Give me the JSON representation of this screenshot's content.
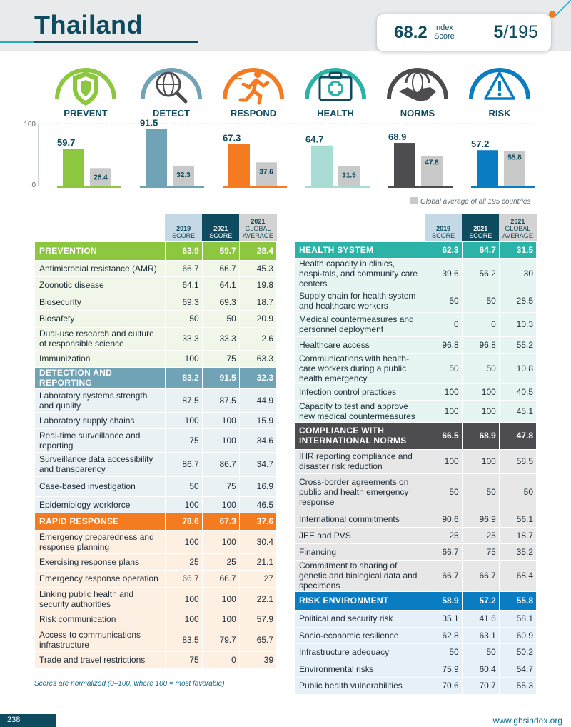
{
  "header": {
    "country": "Thailand",
    "index_score": "68.2",
    "index_label_line1": "Index",
    "index_label_line2": "Score",
    "rank": "5",
    "rank_total": "/195"
  },
  "categories": [
    {
      "label": "PREVENT",
      "icon": "shield-icon",
      "color": "#8dc63f"
    },
    {
      "label": "DETECT",
      "icon": "globe-magnifier-icon",
      "color": "#6fa3b5"
    },
    {
      "label": "RESPOND",
      "icon": "running-person-icon",
      "color": "#f47b20"
    },
    {
      "label": "HEALTH",
      "icon": "medical-kit-icon",
      "color": "#2ab3a6"
    },
    {
      "label": "NORMS",
      "icon": "handshake-globe-icon",
      "color": "#4d4d4f"
    },
    {
      "label": "RISK",
      "icon": "warning-icon",
      "color": "#0a7cc1"
    }
  ],
  "chart_data": {
    "type": "bar",
    "categories": [
      "PREVENT",
      "DETECT",
      "RESPOND",
      "HEALTH",
      "NORMS",
      "RISK"
    ],
    "series": [
      {
        "name": "Thailand",
        "values": [
          59.7,
          91.5,
          67.3,
          64.7,
          68.9,
          57.2
        ],
        "colors": [
          "#8dc63f",
          "#6fa3b5",
          "#f47b20",
          "#a8dcd4",
          "#4d4d4f",
          "#0a7cc1"
        ]
      },
      {
        "name": "Global average of all 195 countries",
        "values": [
          28.4,
          32.3,
          37.6,
          31.5,
          47.8,
          55.8
        ],
        "color": "#c9c9c9"
      }
    ],
    "ylim": [
      0,
      100
    ],
    "yticks": [
      "100",
      "0"
    ],
    "legend": "Global average of all 195 countries"
  },
  "columns": {
    "y2019": "2019",
    "y2019_sub": "SCORE",
    "y2021": "2021",
    "y2021_sub": "SCORE",
    "avg": "2021",
    "avg_sub1": "GLOBAL",
    "avg_sub2": "AVERAGE"
  },
  "left_table": [
    {
      "section": "PREVENTION",
      "color": "#8dc63f",
      "tint": "#f0f6e8",
      "values": [
        "63.9",
        "59.7",
        "28.4"
      ],
      "rows": [
        {
          "name": "Antimicrobial resistance (AMR)",
          "values": [
            "66.7",
            "66.7",
            "45.3"
          ]
        },
        {
          "name": "Zoonotic disease",
          "values": [
            "64.1",
            "64.1",
            "19.8"
          ]
        },
        {
          "name": "Biosecurity",
          "values": [
            "69.3",
            "69.3",
            "18.7"
          ]
        },
        {
          "name": "Biosafety",
          "values": [
            "50",
            "50",
            "20.9"
          ]
        },
        {
          "name": "Dual-use research and culture of responsible science",
          "values": [
            "33.3",
            "33.3",
            "2.6"
          ]
        },
        {
          "name": "Immunization",
          "values": [
            "100",
            "75",
            "63.3"
          ]
        }
      ]
    },
    {
      "section": "DETECTION AND REPORTING",
      "color": "#6fa3b5",
      "tint": "#eaf1f4",
      "values": [
        "83.2",
        "91.5",
        "32.3"
      ],
      "rows": [
        {
          "name": "Laboratory systems strength and quality",
          "values": [
            "87.5",
            "87.5",
            "44.9"
          ]
        },
        {
          "name": "Laboratory supply chains",
          "values": [
            "100",
            "100",
            "15.9"
          ]
        },
        {
          "name": "Real-time surveillance and reporting",
          "values": [
            "75",
            "100",
            "34.6"
          ]
        },
        {
          "name": "Surveillance data accessibility and transparency",
          "values": [
            "86.7",
            "86.7",
            "34.7"
          ]
        },
        {
          "name": "Case-based investigation",
          "values": [
            "50",
            "75",
            "16.9"
          ]
        },
        {
          "name": "Epidemiology workforce",
          "values": [
            "100",
            "100",
            "46.5"
          ]
        }
      ]
    },
    {
      "section": "RAPID RESPONSE",
      "color": "#f47b20",
      "tint": "#fdf0e3",
      "values": [
        "78.6",
        "67.3",
        "37.6"
      ],
      "rows": [
        {
          "name": "Emergency preparedness and response planning",
          "values": [
            "100",
            "100",
            "30.4"
          ]
        },
        {
          "name": "Exercising response plans",
          "values": [
            "25",
            "25",
            "21.1"
          ]
        },
        {
          "name": "Emergency response operation",
          "values": [
            "66.7",
            "66.7",
            "27"
          ]
        },
        {
          "name": "Linking public health and security authorities",
          "values": [
            "100",
            "100",
            "22.1"
          ]
        },
        {
          "name": "Risk communication",
          "values": [
            "100",
            "100",
            "57.9"
          ]
        },
        {
          "name": "Access to communications infrastructure",
          "values": [
            "83.5",
            "79.7",
            "65.7"
          ]
        },
        {
          "name": "Trade and travel restrictions",
          "values": [
            "75",
            "0",
            "39"
          ]
        }
      ]
    }
  ],
  "right_table": [
    {
      "section": "HEALTH SYSTEM",
      "color": "#2ab3a6",
      "tint": "#e6f4f2",
      "values": [
        "62.3",
        "64.7",
        "31.5"
      ],
      "rows": [
        {
          "name": "Health capacity in clinics, hospi-tals, and community care centers",
          "values": [
            "39.6",
            "56.2",
            "30"
          ]
        },
        {
          "name": "Supply chain for health system and healthcare workers",
          "values": [
            "50",
            "50",
            "28.5"
          ]
        },
        {
          "name": "Medical countermeasures and personnel deployment",
          "values": [
            "0",
            "0",
            "10.3"
          ]
        },
        {
          "name": "Healthcare access",
          "values": [
            "96.8",
            "96.8",
            "55.2"
          ]
        },
        {
          "name": "Communications with health-care workers during a public health emergency",
          "values": [
            "50",
            "50",
            "10.8"
          ]
        },
        {
          "name": "Infection control practices",
          "values": [
            "100",
            "100",
            "40.5"
          ]
        },
        {
          "name": "Capacity to test and approve new medical countermeasures",
          "values": [
            "100",
            "100",
            "45.1"
          ]
        }
      ]
    },
    {
      "section": "COMPLIANCE WITH INTERNATIONAL NORMS",
      "color": "#4d4d4f",
      "tint": "#e7e7e8",
      "values": [
        "66.5",
        "68.9",
        "47.8"
      ],
      "rows": [
        {
          "name": "IHR reporting compliance and disaster risk reduction",
          "values": [
            "100",
            "100",
            "58.5"
          ]
        },
        {
          "name": "Cross-border agreements on public and health emergency response",
          "values": [
            "50",
            "50",
            "50"
          ]
        },
        {
          "name": "International commitments",
          "values": [
            "90.6",
            "96.9",
            "56.1"
          ]
        },
        {
          "name": "JEE and PVS",
          "values": [
            "25",
            "25",
            "18.7"
          ]
        },
        {
          "name": "Financing",
          "values": [
            "66.7",
            "75",
            "35.2"
          ]
        },
        {
          "name": "Commitment to sharing of genetic and biological data and specimens",
          "values": [
            "66.7",
            "66.7",
            "68.4"
          ]
        }
      ]
    },
    {
      "section": "RISK ENVIRONMENT",
      "color": "#0a7cc1",
      "tint": "#e5f0f8",
      "values": [
        "58.9",
        "57.2",
        "55.8"
      ],
      "rows": [
        {
          "name": "Political and security risk",
          "values": [
            "35.1",
            "41.6",
            "58.1"
          ]
        },
        {
          "name": "Socio-economic resilience",
          "values": [
            "62.8",
            "63.1",
            "60.9"
          ]
        },
        {
          "name": "Infrastructure adequacy",
          "values": [
            "50",
            "50",
            "50.2"
          ]
        },
        {
          "name": "Environmental risks",
          "values": [
            "75.9",
            "60.4",
            "54.7"
          ]
        },
        {
          "name": "Public health vulnerabilities",
          "values": [
            "70.6",
            "70.7",
            "55.3"
          ]
        }
      ]
    }
  ],
  "footnote": "Scores are normalized (0–100, where 100 = most favorable)",
  "footer": {
    "page_number": "238",
    "website": "www.ghsindex.org"
  }
}
